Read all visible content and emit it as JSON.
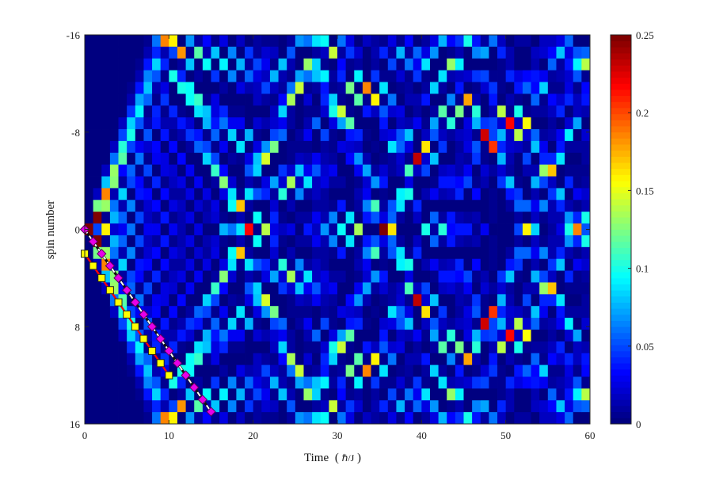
{
  "chart_data": {
    "type": "heatmap",
    "title": "",
    "xlabel": "Time",
    "xlabel_units": "ℏ/J",
    "ylabel": "spin number",
    "xlim": [
      0,
      60
    ],
    "ylim": [
      -16,
      16
    ],
    "y_direction": "reversed",
    "x_ticks": [
      "0",
      "10",
      "20",
      "30",
      "40",
      "50",
      "60"
    ],
    "y_ticks": [
      "-16",
      "-8",
      "0",
      "8",
      "16"
    ],
    "colormap": "jet",
    "colorbar": {
      "range": [
        0,
        0.25
      ],
      "ticks": [
        "0",
        "0.05",
        "0.1",
        "0.15",
        "0.2",
        "0.25"
      ],
      "levels": 64
    },
    "grid": {
      "time_step": 1,
      "spin_min": -16,
      "spin_max": 16,
      "hopping": 1,
      "initial_spin": 0
    },
    "overlays": [
      {
        "name": "",
        "marker": "diamond",
        "marker_color": "#e800e8",
        "line_style": "dashed",
        "line_color": "#ffffff",
        "points": [
          [
            0,
            0
          ],
          [
            1,
            1
          ],
          [
            2,
            2
          ],
          [
            3,
            3
          ],
          [
            4,
            4
          ],
          [
            5,
            5
          ],
          [
            6,
            6
          ],
          [
            7,
            7
          ],
          [
            8,
            8
          ],
          [
            9,
            9
          ],
          [
            10,
            10
          ],
          [
            11,
            11
          ],
          [
            12,
            12
          ],
          [
            13,
            13
          ],
          [
            14,
            14
          ],
          [
            15,
            15
          ]
        ]
      },
      {
        "name": "",
        "marker": "square",
        "marker_color": "#ffff00",
        "line_style": "solid",
        "line_color": "#ff0000",
        "points": [
          [
            0,
            2
          ],
          [
            1,
            3
          ],
          [
            2,
            4
          ],
          [
            3,
            5
          ],
          [
            4,
            6
          ],
          [
            5,
            7
          ],
          [
            6,
            8
          ],
          [
            7,
            9
          ],
          [
            8,
            10
          ],
          [
            9,
            11
          ],
          [
            10,
            12
          ]
        ]
      }
    ]
  }
}
